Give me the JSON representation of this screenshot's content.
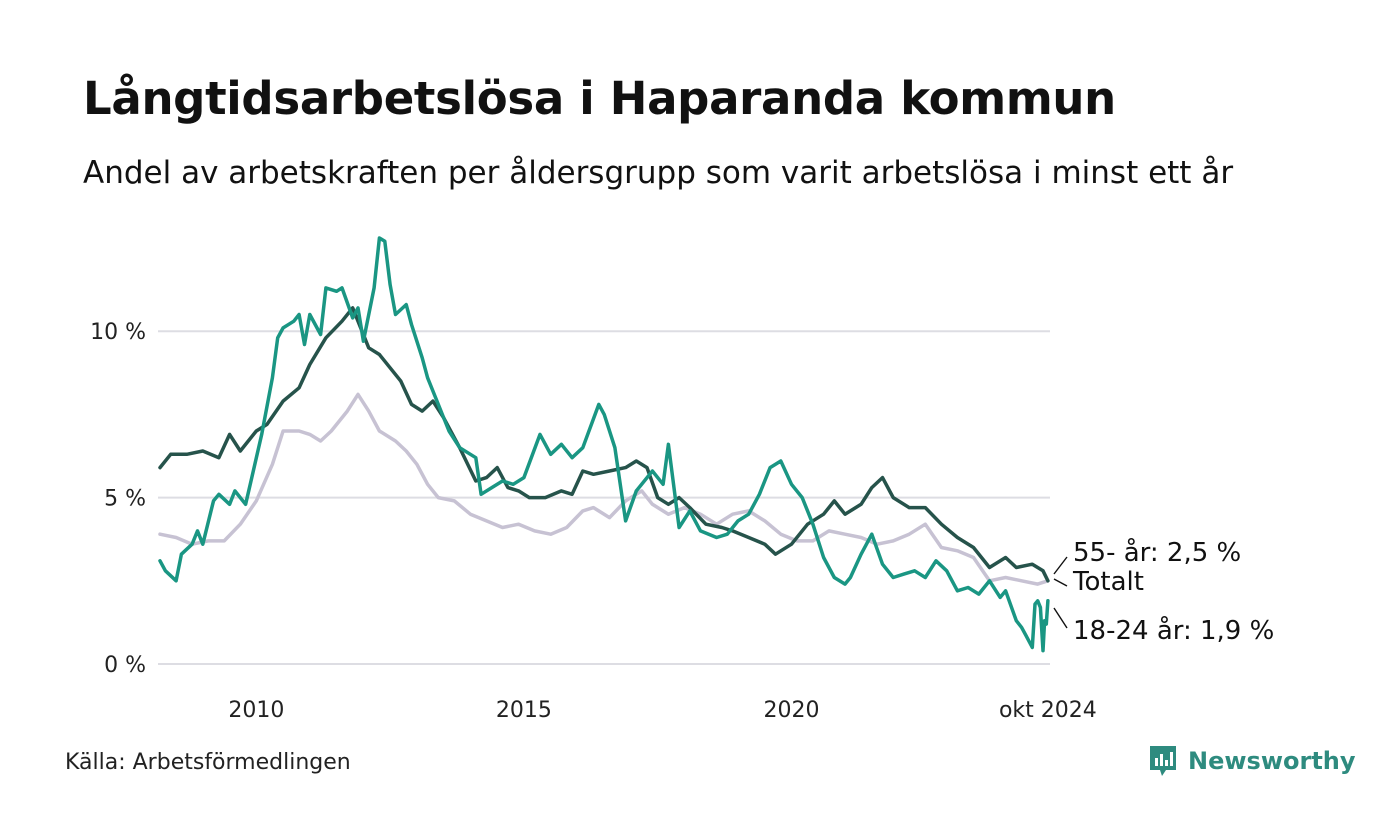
{
  "title": "Långtidsarbetslösa i Haparanda kommun",
  "subtitle": "Andel av arbetskraften per åldersgrupp som varit arbetslösa i minst ett år",
  "source": "Källa: Arbetsförmedlingen",
  "brand": {
    "name": "Newsworthy",
    "icon": "newsworthy-logo-icon",
    "color": "#2e8b7f"
  },
  "chart_data": {
    "type": "line",
    "title": "Långtidsarbetslösa i Haparanda kommun",
    "xlabel": "",
    "ylabel": "",
    "xlim": [
      2008.2,
      2024.83
    ],
    "ylim": [
      0,
      12.8
    ],
    "grid": true,
    "y_ticks": [
      {
        "value": 0,
        "label": "0 %"
      },
      {
        "value": 5,
        "label": "5 %"
      },
      {
        "value": 10,
        "label": "10 %"
      }
    ],
    "x_ticks": [
      {
        "value": 2010,
        "label": "2010"
      },
      {
        "value": 2015,
        "label": "2015"
      },
      {
        "value": 2020,
        "label": "2020"
      },
      {
        "value": 2024.79,
        "label": "okt 2024"
      }
    ],
    "series": [
      {
        "name": "Totalt",
        "color": "#c7c2d3",
        "end_label": "Totalt",
        "points": [
          [
            2008.2,
            3.9
          ],
          [
            2008.5,
            3.8
          ],
          [
            2008.8,
            3.6
          ],
          [
            2009.1,
            3.7
          ],
          [
            2009.4,
            3.7
          ],
          [
            2009.7,
            4.2
          ],
          [
            2010.0,
            4.9
          ],
          [
            2010.3,
            6.0
          ],
          [
            2010.5,
            7.0
          ],
          [
            2010.8,
            7.0
          ],
          [
            2011.0,
            6.9
          ],
          [
            2011.2,
            6.7
          ],
          [
            2011.4,
            7.0
          ],
          [
            2011.7,
            7.6
          ],
          [
            2011.9,
            8.1
          ],
          [
            2012.1,
            7.6
          ],
          [
            2012.3,
            7.0
          ],
          [
            2012.6,
            6.7
          ],
          [
            2012.8,
            6.4
          ],
          [
            2013.0,
            6.0
          ],
          [
            2013.2,
            5.4
          ],
          [
            2013.4,
            5.0
          ],
          [
            2013.7,
            4.9
          ],
          [
            2014.0,
            4.5
          ],
          [
            2014.3,
            4.3
          ],
          [
            2014.6,
            4.1
          ],
          [
            2014.9,
            4.2
          ],
          [
            2015.2,
            4.0
          ],
          [
            2015.5,
            3.9
          ],
          [
            2015.8,
            4.1
          ],
          [
            2016.1,
            4.6
          ],
          [
            2016.3,
            4.7
          ],
          [
            2016.6,
            4.4
          ],
          [
            2016.9,
            4.9
          ],
          [
            2017.2,
            5.2
          ],
          [
            2017.4,
            4.8
          ],
          [
            2017.7,
            4.5
          ],
          [
            2018.0,
            4.7
          ],
          [
            2018.3,
            4.5
          ],
          [
            2018.6,
            4.2
          ],
          [
            2018.9,
            4.5
          ],
          [
            2019.2,
            4.6
          ],
          [
            2019.5,
            4.3
          ],
          [
            2019.8,
            3.9
          ],
          [
            2020.1,
            3.7
          ],
          [
            2020.4,
            3.7
          ],
          [
            2020.7,
            4.0
          ],
          [
            2021.0,
            3.9
          ],
          [
            2021.3,
            3.8
          ],
          [
            2021.6,
            3.6
          ],
          [
            2021.9,
            3.7
          ],
          [
            2022.2,
            3.9
          ],
          [
            2022.5,
            4.2
          ],
          [
            2022.8,
            3.5
          ],
          [
            2023.1,
            3.4
          ],
          [
            2023.4,
            3.2
          ],
          [
            2023.7,
            2.5
          ],
          [
            2024.0,
            2.6
          ],
          [
            2024.3,
            2.5
          ],
          [
            2024.6,
            2.4
          ],
          [
            2024.79,
            2.5
          ]
        ]
      },
      {
        "name": "55- år",
        "color": "#26534b",
        "end_label": "55- år: 2,5 %",
        "points": [
          [
            2008.2,
            5.9
          ],
          [
            2008.4,
            6.3
          ],
          [
            2008.7,
            6.3
          ],
          [
            2009.0,
            6.4
          ],
          [
            2009.3,
            6.2
          ],
          [
            2009.5,
            6.9
          ],
          [
            2009.7,
            6.4
          ],
          [
            2010.0,
            7.0
          ],
          [
            2010.2,
            7.2
          ],
          [
            2010.5,
            7.9
          ],
          [
            2010.8,
            8.3
          ],
          [
            2011.0,
            9.0
          ],
          [
            2011.3,
            9.8
          ],
          [
            2011.6,
            10.3
          ],
          [
            2011.8,
            10.7
          ],
          [
            2011.9,
            10.3
          ],
          [
            2012.1,
            9.5
          ],
          [
            2012.3,
            9.3
          ],
          [
            2012.5,
            8.9
          ],
          [
            2012.7,
            8.5
          ],
          [
            2012.9,
            7.8
          ],
          [
            2013.1,
            7.6
          ],
          [
            2013.3,
            7.9
          ],
          [
            2013.5,
            7.4
          ],
          [
            2013.8,
            6.5
          ],
          [
            2014.1,
            5.5
          ],
          [
            2014.3,
            5.6
          ],
          [
            2014.5,
            5.9
          ],
          [
            2014.7,
            5.3
          ],
          [
            2014.9,
            5.2
          ],
          [
            2015.1,
            5.0
          ],
          [
            2015.4,
            5.0
          ],
          [
            2015.7,
            5.2
          ],
          [
            2015.9,
            5.1
          ],
          [
            2016.1,
            5.8
          ],
          [
            2016.3,
            5.7
          ],
          [
            2016.6,
            5.8
          ],
          [
            2016.9,
            5.9
          ],
          [
            2017.1,
            6.1
          ],
          [
            2017.3,
            5.9
          ],
          [
            2017.5,
            5.0
          ],
          [
            2017.7,
            4.8
          ],
          [
            2017.9,
            5.0
          ],
          [
            2018.1,
            4.7
          ],
          [
            2018.4,
            4.2
          ],
          [
            2018.7,
            4.1
          ],
          [
            2018.9,
            4.0
          ],
          [
            2019.2,
            3.8
          ],
          [
            2019.5,
            3.6
          ],
          [
            2019.7,
            3.3
          ],
          [
            2020.0,
            3.6
          ],
          [
            2020.3,
            4.2
          ],
          [
            2020.6,
            4.5
          ],
          [
            2020.8,
            4.9
          ],
          [
            2021.0,
            4.5
          ],
          [
            2021.3,
            4.8
          ],
          [
            2021.5,
            5.3
          ],
          [
            2021.7,
            5.6
          ],
          [
            2021.9,
            5.0
          ],
          [
            2022.2,
            4.7
          ],
          [
            2022.5,
            4.7
          ],
          [
            2022.8,
            4.2
          ],
          [
            2023.1,
            3.8
          ],
          [
            2023.4,
            3.5
          ],
          [
            2023.7,
            2.9
          ],
          [
            2024.0,
            3.2
          ],
          [
            2024.2,
            2.9
          ],
          [
            2024.5,
            3.0
          ],
          [
            2024.7,
            2.8
          ],
          [
            2024.79,
            2.5
          ]
        ]
      },
      {
        "name": "18-24 år",
        "color": "#1a9683",
        "end_label": "18-24 år: 1,9 %",
        "points": [
          [
            2008.2,
            3.1
          ],
          [
            2008.3,
            2.8
          ],
          [
            2008.5,
            2.5
          ],
          [
            2008.6,
            3.3
          ],
          [
            2008.8,
            3.6
          ],
          [
            2008.9,
            4.0
          ],
          [
            2009.0,
            3.6
          ],
          [
            2009.2,
            4.9
          ],
          [
            2009.3,
            5.1
          ],
          [
            2009.5,
            4.8
          ],
          [
            2009.6,
            5.2
          ],
          [
            2009.8,
            4.8
          ],
          [
            2009.9,
            5.5
          ],
          [
            2010.1,
            6.9
          ],
          [
            2010.3,
            8.6
          ],
          [
            2010.4,
            9.8
          ],
          [
            2010.5,
            10.1
          ],
          [
            2010.7,
            10.3
          ],
          [
            2010.8,
            10.5
          ],
          [
            2010.9,
            9.6
          ],
          [
            2011.0,
            10.5
          ],
          [
            2011.2,
            9.9
          ],
          [
            2011.3,
            11.3
          ],
          [
            2011.5,
            11.2
          ],
          [
            2011.6,
            11.3
          ],
          [
            2011.8,
            10.4
          ],
          [
            2011.9,
            10.7
          ],
          [
            2012.0,
            9.7
          ],
          [
            2012.2,
            11.3
          ],
          [
            2012.3,
            12.8
          ],
          [
            2012.4,
            12.7
          ],
          [
            2012.5,
            11.4
          ],
          [
            2012.6,
            10.5
          ],
          [
            2012.8,
            10.8
          ],
          [
            2012.9,
            10.2
          ],
          [
            2013.1,
            9.2
          ],
          [
            2013.2,
            8.6
          ],
          [
            2013.4,
            7.8
          ],
          [
            2013.6,
            7.0
          ],
          [
            2013.8,
            6.5
          ],
          [
            2014.1,
            6.2
          ],
          [
            2014.2,
            5.1
          ],
          [
            2014.4,
            5.3
          ],
          [
            2014.6,
            5.5
          ],
          [
            2014.8,
            5.4
          ],
          [
            2015.0,
            5.6
          ],
          [
            2015.3,
            6.9
          ],
          [
            2015.5,
            6.3
          ],
          [
            2015.7,
            6.6
          ],
          [
            2015.9,
            6.2
          ],
          [
            2016.1,
            6.5
          ],
          [
            2016.4,
            7.8
          ],
          [
            2016.5,
            7.5
          ],
          [
            2016.7,
            6.5
          ],
          [
            2016.9,
            4.3
          ],
          [
            2017.1,
            5.2
          ],
          [
            2017.4,
            5.8
          ],
          [
            2017.6,
            5.4
          ],
          [
            2017.7,
            6.6
          ],
          [
            2017.9,
            4.1
          ],
          [
            2018.1,
            4.6
          ],
          [
            2018.3,
            4.0
          ],
          [
            2018.6,
            3.8
          ],
          [
            2018.8,
            3.9
          ],
          [
            2019.0,
            4.3
          ],
          [
            2019.2,
            4.5
          ],
          [
            2019.4,
            5.1
          ],
          [
            2019.6,
            5.9
          ],
          [
            2019.8,
            6.1
          ],
          [
            2020.0,
            5.4
          ],
          [
            2020.2,
            5.0
          ],
          [
            2020.4,
            4.2
          ],
          [
            2020.6,
            3.2
          ],
          [
            2020.8,
            2.6
          ],
          [
            2021.0,
            2.4
          ],
          [
            2021.1,
            2.6
          ],
          [
            2021.3,
            3.3
          ],
          [
            2021.5,
            3.9
          ],
          [
            2021.7,
            3.0
          ],
          [
            2021.9,
            2.6
          ],
          [
            2022.1,
            2.7
          ],
          [
            2022.3,
            2.8
          ],
          [
            2022.5,
            2.6
          ],
          [
            2022.7,
            3.1
          ],
          [
            2022.9,
            2.8
          ],
          [
            2023.1,
            2.2
          ],
          [
            2023.3,
            2.3
          ],
          [
            2023.5,
            2.1
          ],
          [
            2023.7,
            2.5
          ],
          [
            2023.9,
            2.0
          ],
          [
            2024.0,
            2.2
          ],
          [
            2024.2,
            1.3
          ],
          [
            2024.3,
            1.1
          ],
          [
            2024.4,
            0.8
          ],
          [
            2024.5,
            0.5
          ],
          [
            2024.55,
            1.8
          ],
          [
            2024.6,
            1.9
          ],
          [
            2024.65,
            1.7
          ],
          [
            2024.7,
            0.4
          ],
          [
            2024.73,
            1.3
          ],
          [
            2024.76,
            1.2
          ],
          [
            2024.79,
            1.9
          ]
        ]
      }
    ]
  }
}
